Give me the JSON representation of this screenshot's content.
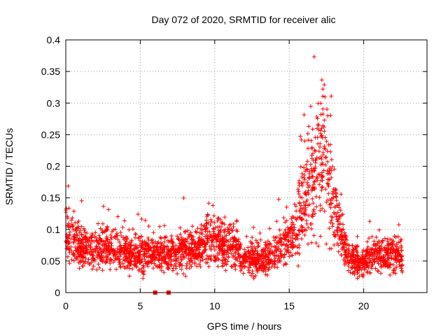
{
  "chart_data": {
    "type": "scatter",
    "title": "Day 072 of 2020, SRMTID for receiver alic",
    "xlabel": "GPS time / hours",
    "ylabel": "SRMTID / TECUs",
    "xlim": [
      0,
      24.25
    ],
    "ylim": [
      0,
      0.4
    ],
    "xticks": [
      0,
      5,
      10,
      15,
      20
    ],
    "xtick_labels": [
      "0",
      "5",
      "10",
      "15",
      "20"
    ],
    "yticks": [
      0,
      0.05,
      0.1,
      0.15,
      0.2,
      0.25,
      0.3,
      0.35,
      0.4
    ],
    "ytick_labels": [
      "0",
      "0.05",
      "0.1",
      "0.15",
      "0.2",
      "0.25",
      "0.3",
      "0.35",
      "0.4"
    ],
    "grid": true,
    "marker": "+",
    "series_color": "#ff0000",
    "zero_markers": [
      {
        "x": 6.0,
        "y": 0
      },
      {
        "x": 6.9,
        "y": 0
      }
    ],
    "envelope": [
      {
        "x": 0.0,
        "y": 0.1
      },
      {
        "x": 0.5,
        "y": 0.085
      },
      {
        "x": 1.0,
        "y": 0.07
      },
      {
        "x": 1.5,
        "y": 0.065
      },
      {
        "x": 2.0,
        "y": 0.07
      },
      {
        "x": 3.0,
        "y": 0.07
      },
      {
        "x": 4.0,
        "y": 0.065
      },
      {
        "x": 5.0,
        "y": 0.06
      },
      {
        "x": 6.0,
        "y": 0.06
      },
      {
        "x": 7.0,
        "y": 0.062
      },
      {
        "x": 8.0,
        "y": 0.068
      },
      {
        "x": 9.0,
        "y": 0.07
      },
      {
        "x": 9.6,
        "y": 0.09
      },
      {
        "x": 10.0,
        "y": 0.08
      },
      {
        "x": 11.0,
        "y": 0.075
      },
      {
        "x": 12.0,
        "y": 0.055
      },
      {
        "x": 13.0,
        "y": 0.05
      },
      {
        "x": 14.0,
        "y": 0.06
      },
      {
        "x": 14.8,
        "y": 0.085
      },
      {
        "x": 15.5,
        "y": 0.1
      },
      {
        "x": 16.0,
        "y": 0.14
      },
      {
        "x": 16.5,
        "y": 0.17
      },
      {
        "x": 17.0,
        "y": 0.19
      },
      {
        "x": 17.3,
        "y": 0.22
      },
      {
        "x": 17.6,
        "y": 0.18
      },
      {
        "x": 18.0,
        "y": 0.13
      },
      {
        "x": 18.5,
        "y": 0.09
      },
      {
        "x": 19.0,
        "y": 0.055
      },
      {
        "x": 19.5,
        "y": 0.05
      },
      {
        "x": 20.0,
        "y": 0.05
      },
      {
        "x": 21.0,
        "y": 0.06
      },
      {
        "x": 22.0,
        "y": 0.06
      },
      {
        "x": 22.6,
        "y": 0.055
      }
    ]
  }
}
